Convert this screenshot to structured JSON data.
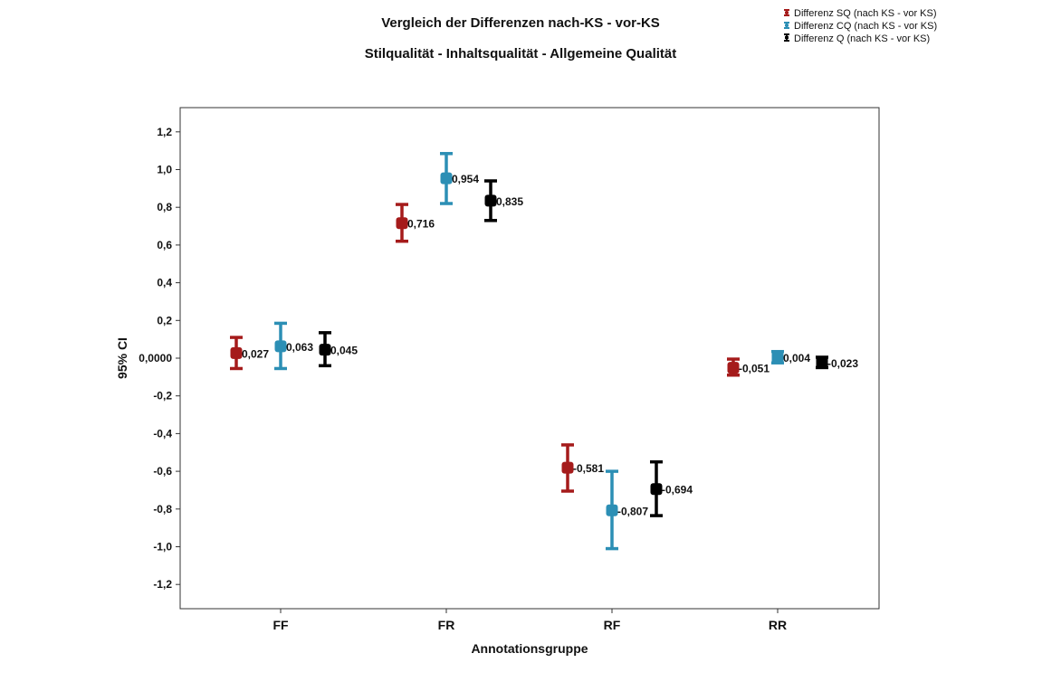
{
  "chart_data": {
    "type": "errorbar",
    "title": "Vergleich der Differenzen nach-KS - vor-KS",
    "subtitle": "Stilqualität - Inhaltsqualität - Allgemeine Qualität",
    "xlabel": "Annotationsgruppe",
    "ylabel": "95% CI",
    "categories": [
      "FF",
      "FR",
      "RF",
      "RR"
    ],
    "ylim": [
      -1.33,
      1.33
    ],
    "yticks": [
      -1.2,
      -1.0,
      -0.8,
      -0.6,
      -0.4,
      -0.2,
      0.0,
      0.2,
      0.4,
      0.6,
      0.8,
      1.0,
      1.2
    ],
    "ytick_labels": [
      "-1,2",
      "-1,0",
      "-0,8",
      "-0,6",
      "-0,4",
      "-0,2",
      "0,0000",
      "0,2",
      "0,4",
      "0,6",
      "0,8",
      "1,0",
      "1,2"
    ],
    "legend_position": "top-right",
    "series": [
      {
        "name": "Differenz SQ (nach KS - vor KS)",
        "color": "#a51b1b",
        "means": [
          0.027,
          0.716,
          -0.581,
          -0.051
        ],
        "lower": [
          -0.055,
          0.62,
          -0.705,
          -0.09
        ],
        "upper": [
          0.11,
          0.815,
          -0.46,
          -0.005
        ],
        "labels": [
          "0,027",
          "0,716",
          "-0,581",
          "-0,051"
        ]
      },
      {
        "name": "Differenz CQ (nach KS - vor KS)",
        "color": "#2c8fb5",
        "means": [
          0.063,
          0.954,
          -0.807,
          0.004
        ],
        "lower": [
          -0.055,
          0.82,
          -1.01,
          -0.025
        ],
        "upper": [
          0.185,
          1.085,
          -0.6,
          0.035
        ],
        "labels": [
          "0,063",
          "0,954",
          "-0,807",
          "0,004"
        ]
      },
      {
        "name": "Differenz Q (nach KS - vor KS)",
        "color": "#000000",
        "means": [
          0.045,
          0.835,
          -0.694,
          -0.023
        ],
        "lower": [
          -0.04,
          0.73,
          -0.835,
          -0.05
        ],
        "upper": [
          0.135,
          0.94,
          -0.55,
          0.005
        ],
        "labels": [
          "0,045",
          "0,835",
          "-0,694",
          "-0,023"
        ]
      }
    ]
  }
}
